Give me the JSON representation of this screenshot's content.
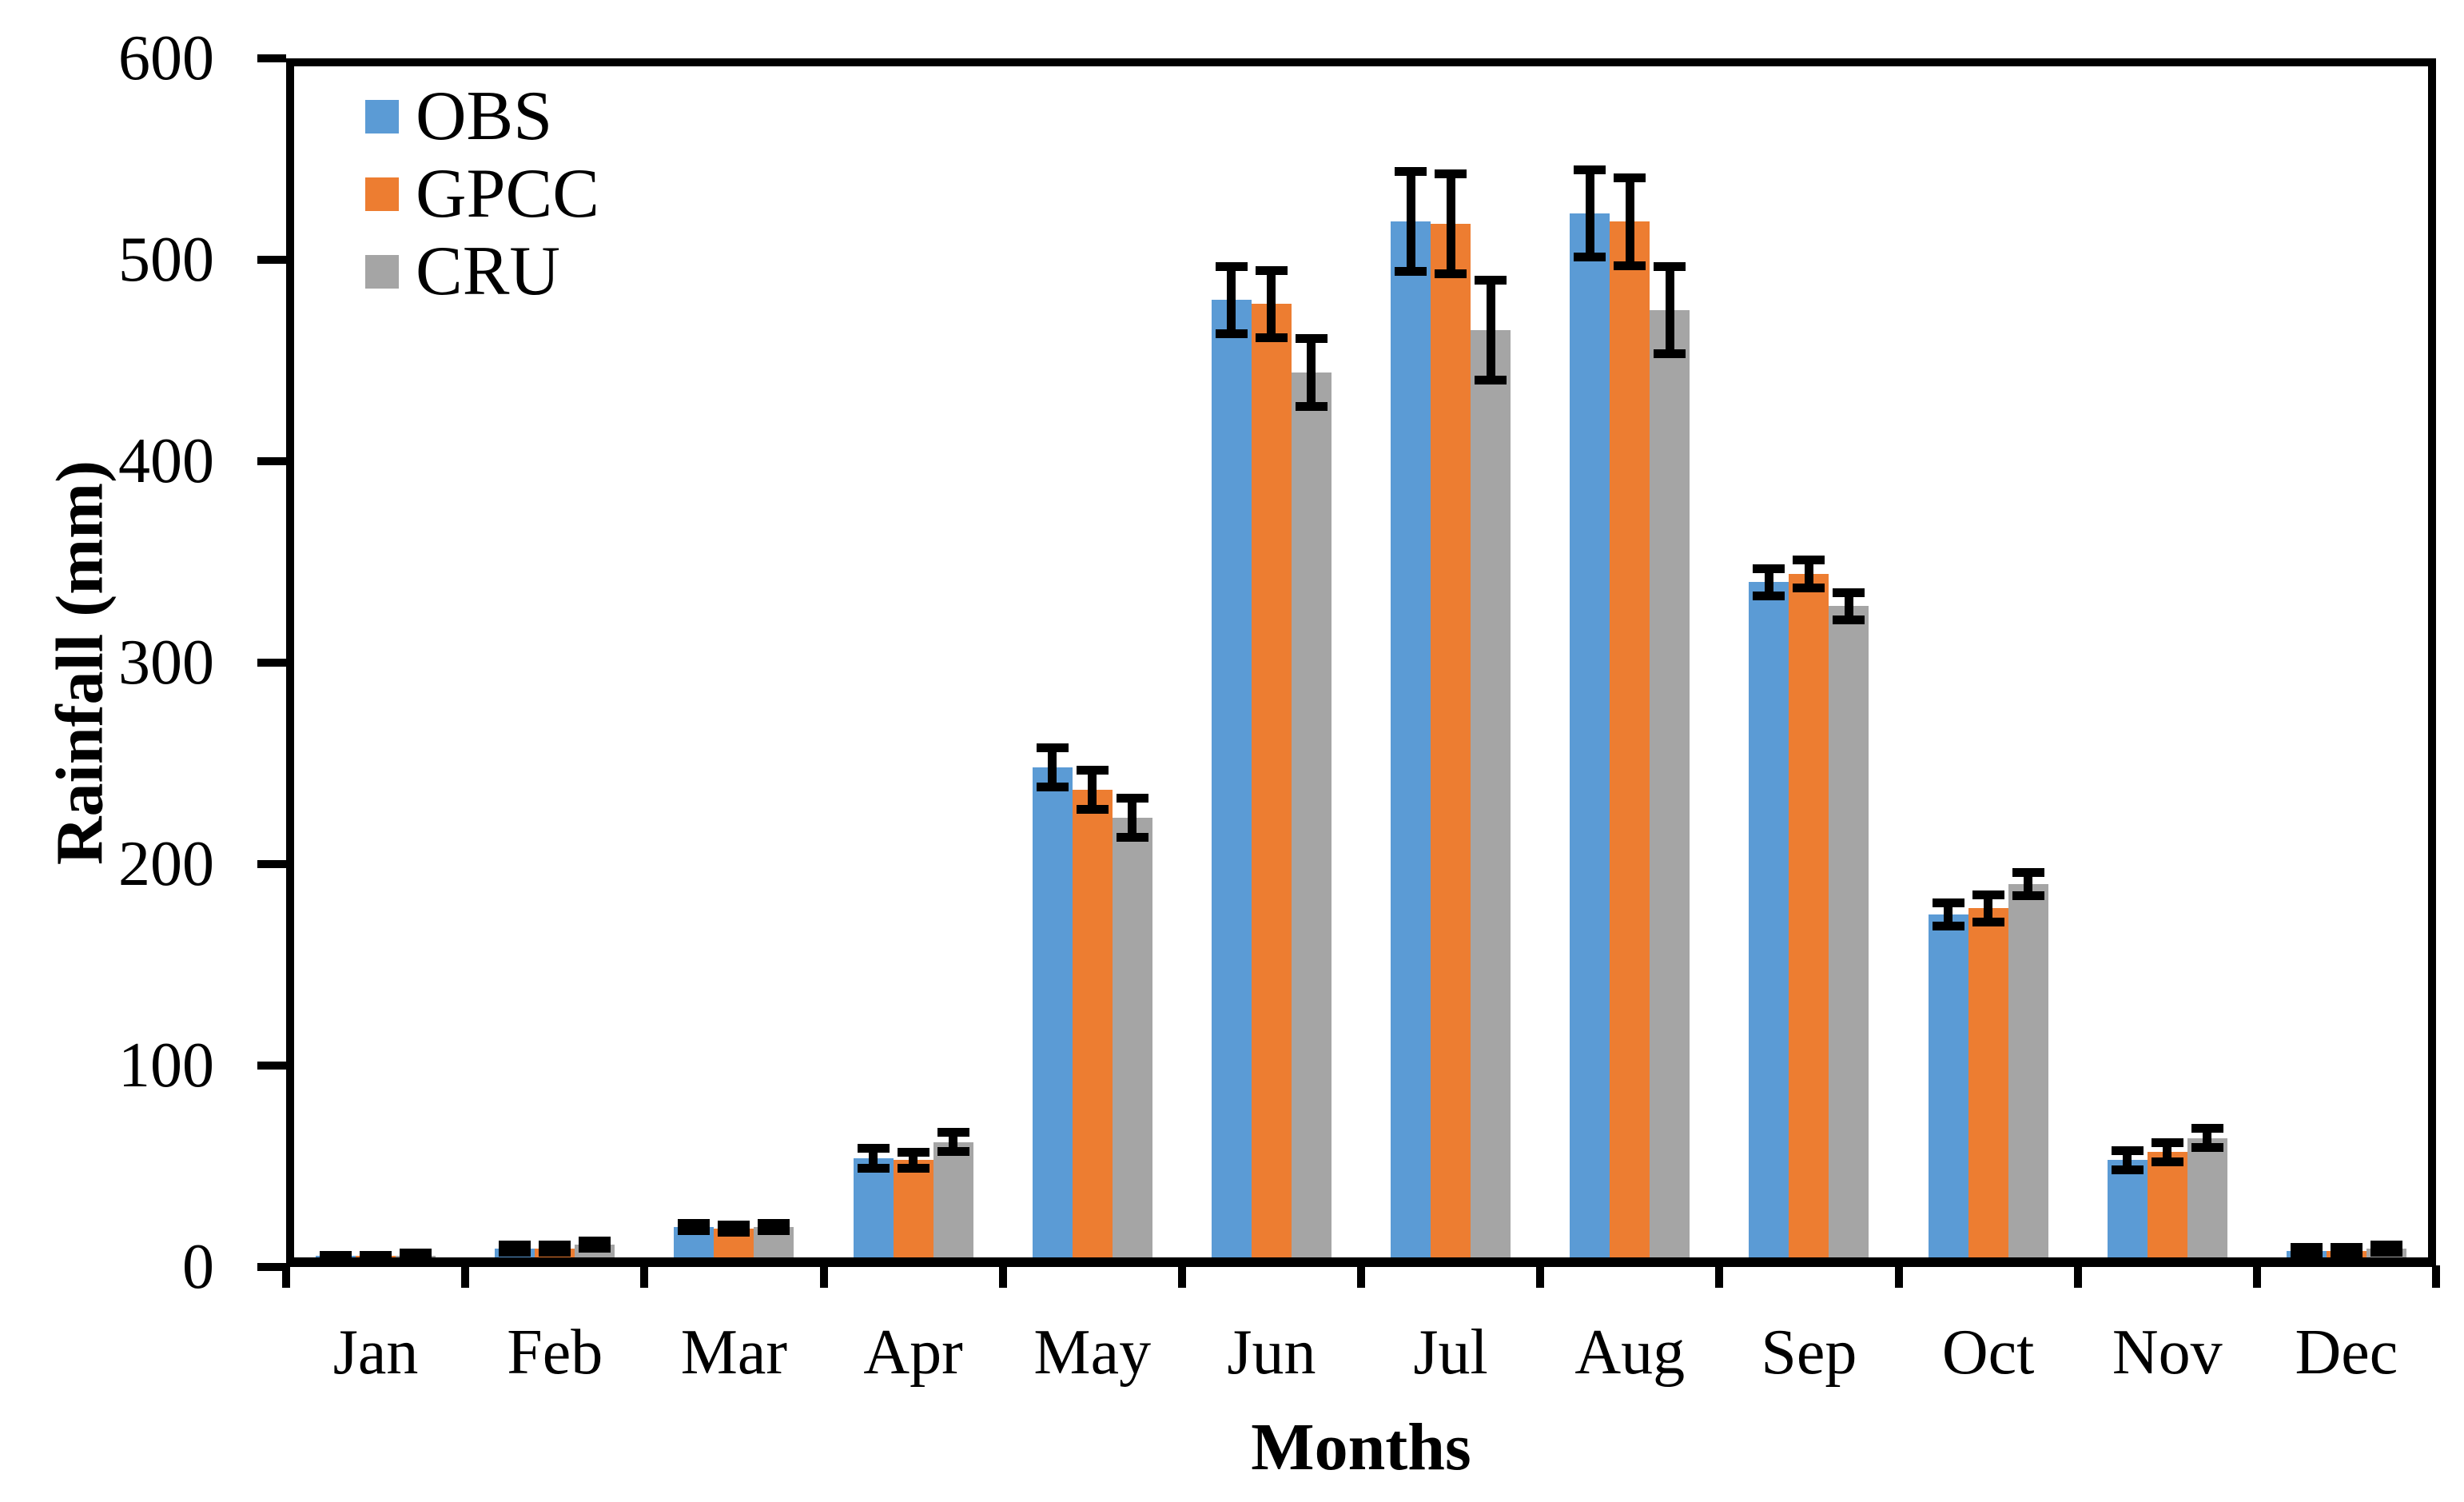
{
  "figure": {
    "background_color": "#FFFFFF",
    "axis_color": "#000000",
    "error_bar_color": "#000000"
  },
  "chart_data": {
    "type": "bar",
    "title": "",
    "xlabel": "Months",
    "ylabel": "Rainfall (mm)",
    "categories": [
      "Jan",
      "Feb",
      "Mar",
      "Apr",
      "May",
      "Jun",
      "Jul",
      "Aug",
      "Sep",
      "Oct",
      "Nov",
      "Dec"
    ],
    "series": [
      {
        "name": "OBS",
        "color": "#5B9BD5",
        "values": [
          4,
          9,
          20,
          54,
          248,
          480,
          519,
          523,
          340,
          175,
          53,
          8
        ],
        "errors": [
          2,
          2,
          2,
          5,
          10,
          17,
          25,
          22,
          7,
          6,
          5,
          2
        ]
      },
      {
        "name": "GPCC",
        "color": "#ED7D31",
        "values": [
          4,
          9,
          19,
          53,
          237,
          478,
          518,
          519,
          344,
          178,
          57,
          8
        ],
        "errors": [
          2,
          2,
          2,
          4,
          10,
          17,
          25,
          22,
          7,
          7,
          5,
          2
        ]
      },
      {
        "name": "CRU",
        "color": "#A5A5A5",
        "values": [
          5,
          11,
          20,
          62,
          223,
          444,
          465,
          475,
          328,
          190,
          64,
          9
        ],
        "errors": [
          2,
          2,
          2,
          5,
          10,
          17,
          25,
          22,
          7,
          6,
          5,
          2
        ]
      }
    ],
    "y_axis": {
      "min": 0,
      "max": 600,
      "tick_step": 100,
      "ticks": [
        600,
        500,
        400,
        300,
        200,
        100,
        0
      ]
    },
    "grid": "off",
    "legend_position": "top-left-inside",
    "error_bars": "plus-minus, black caps"
  }
}
